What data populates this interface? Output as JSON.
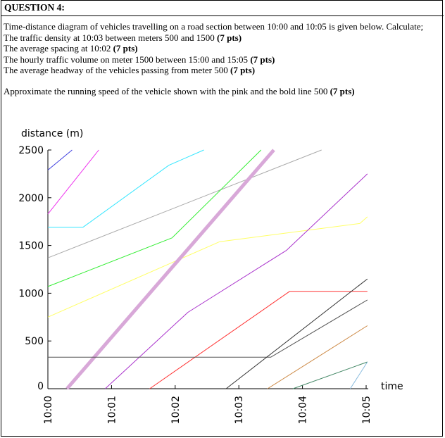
{
  "question": {
    "title": "QUESTION 4:",
    "intro": "Time-distance diagram of vehicles travelling on a road section between 10:00 and 10:05 is given below. Calculate;",
    "items": [
      {
        "text": "The traffic density at 10:03 between meters 500 and 1500 ",
        "pts": "(7 pts)"
      },
      {
        "text": "The average spacing at 10:02 ",
        "pts": "(7 pts)"
      },
      {
        "text": "The hourly traffic volume on meter 1500 between 15:00 and 15:05 ",
        "pts": "(7 pts)"
      },
      {
        "text": "The average headway of the vehicles passing from meter 500 ",
        "pts": "(7 pts)"
      }
    ],
    "last": {
      "text": "Approximate the running speed of the vehicle shown with the pink and the bold line 500 ",
      "pts": "(7 pts)"
    }
  },
  "chart_data": {
    "type": "line",
    "ylabel": "distance (m)",
    "xlabel": "time",
    "y_ticks": [
      0,
      500,
      1000,
      1500,
      2000,
      2500
    ],
    "x_ticks": [
      "10:00",
      "10:01",
      "10:02",
      "10:03",
      "10:04",
      "10:05"
    ],
    "xlim": [
      0,
      5
    ],
    "ylim": [
      0,
      2500
    ],
    "series": [
      {
        "color": "#4040e0",
        "width": 1,
        "points": [
          [
            0,
            2290
          ],
          [
            0.38,
            2500
          ]
        ]
      },
      {
        "color": "#ee33ee",
        "width": 1,
        "points": [
          [
            0,
            1830
          ],
          [
            0.8,
            2500
          ]
        ]
      },
      {
        "color": "#33e6ff",
        "width": 1,
        "points": [
          [
            0,
            1690
          ],
          [
            0.55,
            1690
          ],
          [
            1.9,
            2340
          ],
          [
            2.45,
            2500
          ]
        ]
      },
      {
        "color": "#aaaaaa",
        "width": 1,
        "points": [
          [
            0,
            1370
          ],
          [
            4.3,
            2500
          ]
        ]
      },
      {
        "color": "#33ee33",
        "width": 1,
        "points": [
          [
            0,
            1070
          ],
          [
            1.95,
            1580
          ],
          [
            3.35,
            2500
          ]
        ]
      },
      {
        "color": "#ffff66",
        "width": 1,
        "points": [
          [
            0,
            750
          ],
          [
            2.7,
            1540
          ],
          [
            4.9,
            1730
          ],
          [
            5.02,
            1800
          ]
        ]
      },
      {
        "color": "#d8a8d8",
        "width": 5,
        "points": [
          [
            0.3,
            0
          ],
          [
            3.55,
            2500
          ]
        ]
      },
      {
        "color": "#aa33cc",
        "width": 1,
        "points": [
          [
            0.9,
            0
          ],
          [
            2.2,
            800
          ],
          [
            3.75,
            1450
          ],
          [
            5.02,
            2250
          ]
        ]
      },
      {
        "color": "#ff3333",
        "width": 1,
        "points": [
          [
            1.6,
            0
          ],
          [
            3.8,
            1020
          ],
          [
            5.02,
            1020
          ]
        ]
      },
      {
        "color": "#555555",
        "width": 1,
        "points": [
          [
            0,
            330
          ],
          [
            3.5,
            330
          ],
          [
            5.02,
            930
          ]
        ]
      },
      {
        "color": "#333333",
        "width": 1,
        "points": [
          [
            2.8,
            0
          ],
          [
            5.02,
            1150
          ]
        ]
      },
      {
        "color": "#cc8844",
        "width": 1,
        "points": [
          [
            3.45,
            0
          ],
          [
            5.02,
            660
          ]
        ]
      },
      {
        "color": "#448866",
        "width": 1,
        "points": [
          [
            3.85,
            0
          ],
          [
            5.02,
            280
          ]
        ]
      },
      {
        "color": "#88bbdd",
        "width": 1,
        "points": [
          [
            4.75,
            0
          ],
          [
            5.02,
            280
          ]
        ]
      }
    ]
  }
}
